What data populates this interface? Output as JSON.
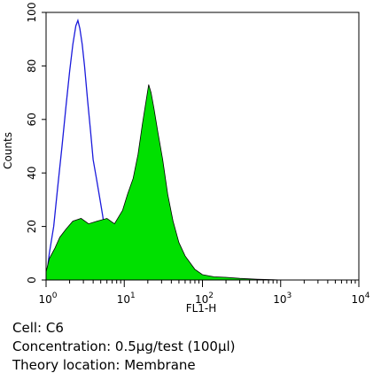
{
  "chart_data": {
    "type": "area",
    "xlabel": "FL1-H",
    "ylabel": "Counts",
    "x_scale": "log",
    "xlim": [
      1,
      10000
    ],
    "ylim": [
      0,
      100
    ],
    "x_ticks": [
      {
        "base": "10",
        "exp": "0",
        "value": 1
      },
      {
        "base": "10",
        "exp": "1",
        "value": 10
      },
      {
        "base": "10",
        "exp": "2",
        "value": 100
      },
      {
        "base": "10",
        "exp": "3",
        "value": 1000
      },
      {
        "base": "10",
        "exp": "4",
        "value": 10000
      }
    ],
    "y_ticks": [
      "0",
      "20",
      "40",
      "60",
      "80",
      "100"
    ],
    "y_tick_values": [
      0,
      20,
      40,
      60,
      80,
      100
    ],
    "series": [
      {
        "kind": "outline",
        "color": "#1a1adc",
        "x": [
          1,
          1.1,
          1.25,
          1.4,
          1.6,
          1.8,
          2.0,
          2.2,
          2.4,
          2.55,
          2.7,
          2.9,
          3.1,
          3.4,
          3.7,
          4.0,
          4.4,
          4.9,
          5.3,
          5.8,
          6.5
        ],
        "y": [
          0,
          10,
          20,
          34,
          50,
          65,
          78,
          88,
          95,
          97,
          94,
          88,
          80,
          67,
          56,
          45,
          38,
          30,
          24,
          16,
          12
        ]
      },
      {
        "kind": "filled",
        "color": "#00e000",
        "x": [
          1,
          1.1,
          1.3,
          1.5,
          1.8,
          2.2,
          2.8,
          3.5,
          4.5,
          6,
          7.5,
          9.5,
          11,
          13,
          15,
          17,
          19,
          20.5,
          22,
          24,
          27,
          31,
          36,
          42,
          50,
          60,
          80,
          100,
          140,
          200,
          300,
          500,
          800,
          1000
        ],
        "y": [
          3,
          8,
          12,
          16,
          19,
          22,
          23,
          21,
          22,
          23,
          21,
          26,
          32,
          38,
          47,
          58,
          67,
          73,
          70,
          64,
          55,
          45,
          32,
          22,
          14,
          9,
          4,
          2,
          1.2,
          1,
          0.6,
          0.3,
          0.1,
          0
        ]
      }
    ]
  },
  "info": {
    "cell": "Cell: C6",
    "concentration": "Concentration: 0.5µg/test (100µl)",
    "location": "Theory location: Membrane"
  }
}
